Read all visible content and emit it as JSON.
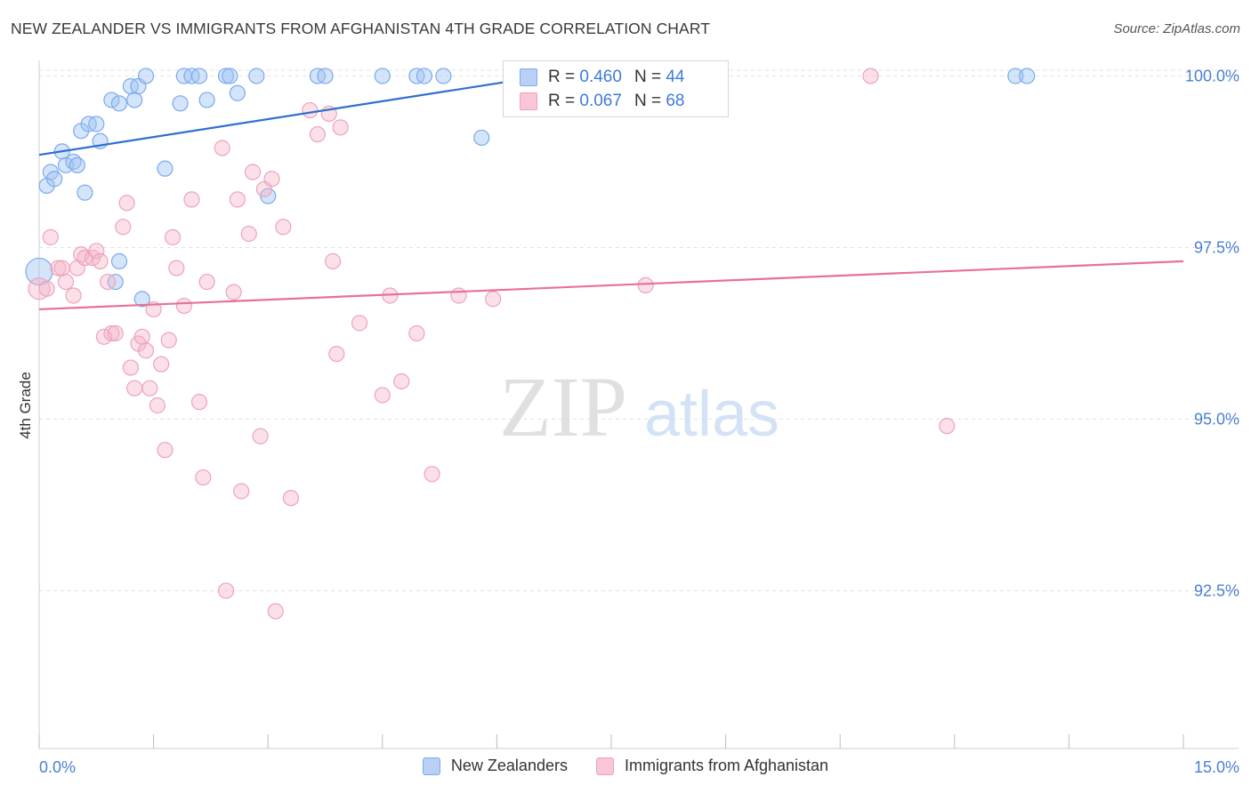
{
  "header": {
    "title": "NEW ZEALANDER VS IMMIGRANTS FROM AFGHANISTAN 4TH GRADE CORRELATION CHART",
    "source": "Source: ZipAtlas.com"
  },
  "watermark": {
    "zip": "ZIP",
    "atlas": "atlas"
  },
  "legend": {
    "r_label": "R =",
    "n_label": "N =",
    "series": [
      {
        "name": "New Zealanders",
        "r": "0.460",
        "n": "44",
        "color": "#7aaaf0",
        "fill": "#b9d0f5"
      },
      {
        "name": "Immigrants from Afghanistan",
        "r": "0.067",
        "n": "68",
        "color": "#f0a0b8",
        "fill": "#f8c6d4"
      }
    ]
  },
  "colors": {
    "blue_line": "#2e6fd0",
    "pink_line": "#e7709a",
    "axis_text": "#4a7fd4",
    "grid": "#e2e2e2"
  },
  "chart_data": {
    "type": "scatter",
    "title": "NEW ZEALANDER VS IMMIGRANTS FROM AFGHANISTAN 4TH GRADE CORRELATION CHART",
    "xlabel": "",
    "ylabel": "4th Grade",
    "xlim": [
      0,
      15
    ],
    "ylim": [
      90.2,
      100.2
    ],
    "x_tick_labels": [
      "0.0%",
      "15.0%"
    ],
    "y_ticks": [
      92.5,
      95.0,
      97.5,
      100.0
    ],
    "y_tick_labels": [
      "92.5%",
      "95.0%",
      "97.5%",
      "100.0%"
    ],
    "grid": true,
    "legend_position": "top-center",
    "series": [
      {
        "name": "New Zealanders",
        "trend": [
          [
            0.0,
            98.85
          ],
          [
            7.2,
            100.1
          ]
        ],
        "points": [
          [
            0.0,
            97.15
          ],
          [
            0.1,
            98.4
          ],
          [
            0.15,
            98.6
          ],
          [
            0.2,
            98.5
          ],
          [
            0.3,
            98.9
          ],
          [
            0.35,
            98.7
          ],
          [
            0.45,
            98.75
          ],
          [
            0.5,
            98.7
          ],
          [
            0.6,
            98.3
          ],
          [
            0.55,
            99.2
          ],
          [
            0.65,
            99.3
          ],
          [
            0.75,
            99.3
          ],
          [
            0.8,
            99.05
          ],
          [
            0.95,
            99.65
          ],
          [
            1.05,
            99.6
          ],
          [
            1.2,
            99.85
          ],
          [
            1.25,
            99.65
          ],
          [
            1.3,
            99.85
          ],
          [
            1.4,
            100.0
          ],
          [
            1.9,
            100.0
          ],
          [
            1.85,
            99.6
          ],
          [
            1.65,
            98.65
          ],
          [
            2.0,
            100.0
          ],
          [
            2.1,
            100.0
          ],
          [
            2.2,
            99.65
          ],
          [
            2.45,
            100.0
          ],
          [
            2.5,
            100.0
          ],
          [
            2.6,
            99.75
          ],
          [
            2.85,
            100.0
          ],
          [
            3.0,
            98.25
          ],
          [
            3.65,
            100.0
          ],
          [
            3.75,
            100.0
          ],
          [
            4.5,
            100.0
          ],
          [
            4.95,
            100.0
          ],
          [
            5.05,
            100.0
          ],
          [
            5.3,
            100.0
          ],
          [
            5.8,
            99.1
          ],
          [
            6.7,
            100.0
          ],
          [
            12.8,
            100.0
          ],
          [
            12.95,
            100.0
          ],
          [
            1.0,
            97.0
          ],
          [
            1.05,
            97.3
          ],
          [
            1.35,
            96.75
          ],
          [
            7.0,
            100.0
          ]
        ]
      },
      {
        "name": "Immigrants from Afghanistan",
        "trend": [
          [
            0.0,
            96.6
          ],
          [
            15.0,
            97.3
          ]
        ],
        "points": [
          [
            0.0,
            96.9
          ],
          [
            0.1,
            96.9
          ],
          [
            0.15,
            97.65
          ],
          [
            0.25,
            97.2
          ],
          [
            0.3,
            97.2
          ],
          [
            0.35,
            97.0
          ],
          [
            0.45,
            96.8
          ],
          [
            0.5,
            97.2
          ],
          [
            0.55,
            97.4
          ],
          [
            0.6,
            97.35
          ],
          [
            0.7,
            97.35
          ],
          [
            0.75,
            97.45
          ],
          [
            0.8,
            97.3
          ],
          [
            0.9,
            97.0
          ],
          [
            0.85,
            96.2
          ],
          [
            0.95,
            96.25
          ],
          [
            1.0,
            96.25
          ],
          [
            1.1,
            97.8
          ],
          [
            1.15,
            98.15
          ],
          [
            1.2,
            95.75
          ],
          [
            1.25,
            95.45
          ],
          [
            1.3,
            96.1
          ],
          [
            1.35,
            96.2
          ],
          [
            1.45,
            95.45
          ],
          [
            1.5,
            96.6
          ],
          [
            1.55,
            95.2
          ],
          [
            1.6,
            95.8
          ],
          [
            1.65,
            94.55
          ],
          [
            1.7,
            96.15
          ],
          [
            1.75,
            97.65
          ],
          [
            1.8,
            97.2
          ],
          [
            1.9,
            96.65
          ],
          [
            2.0,
            98.2
          ],
          [
            2.1,
            95.25
          ],
          [
            2.15,
            94.15
          ],
          [
            2.2,
            97.0
          ],
          [
            2.4,
            98.95
          ],
          [
            2.45,
            92.5
          ],
          [
            2.55,
            96.85
          ],
          [
            2.6,
            98.2
          ],
          [
            2.65,
            93.95
          ],
          [
            2.75,
            97.7
          ],
          [
            2.8,
            98.6
          ],
          [
            2.9,
            94.75
          ],
          [
            2.95,
            98.35
          ],
          [
            3.05,
            98.5
          ],
          [
            3.1,
            92.2
          ],
          [
            3.2,
            97.8
          ],
          [
            3.3,
            93.85
          ],
          [
            3.55,
            99.5
          ],
          [
            3.65,
            99.15
          ],
          [
            3.8,
            99.45
          ],
          [
            3.85,
            97.3
          ],
          [
            3.9,
            95.95
          ],
          [
            3.95,
            99.25
          ],
          [
            4.2,
            96.4
          ],
          [
            4.5,
            95.35
          ],
          [
            4.6,
            96.8
          ],
          [
            4.75,
            95.55
          ],
          [
            4.95,
            96.25
          ],
          [
            5.15,
            94.2
          ],
          [
            5.5,
            96.8
          ],
          [
            5.95,
            96.75
          ],
          [
            6.95,
            100.0
          ],
          [
            7.95,
            96.95
          ],
          [
            10.9,
            100.0
          ],
          [
            11.9,
            94.9
          ],
          [
            1.4,
            96.0
          ]
        ]
      }
    ]
  }
}
